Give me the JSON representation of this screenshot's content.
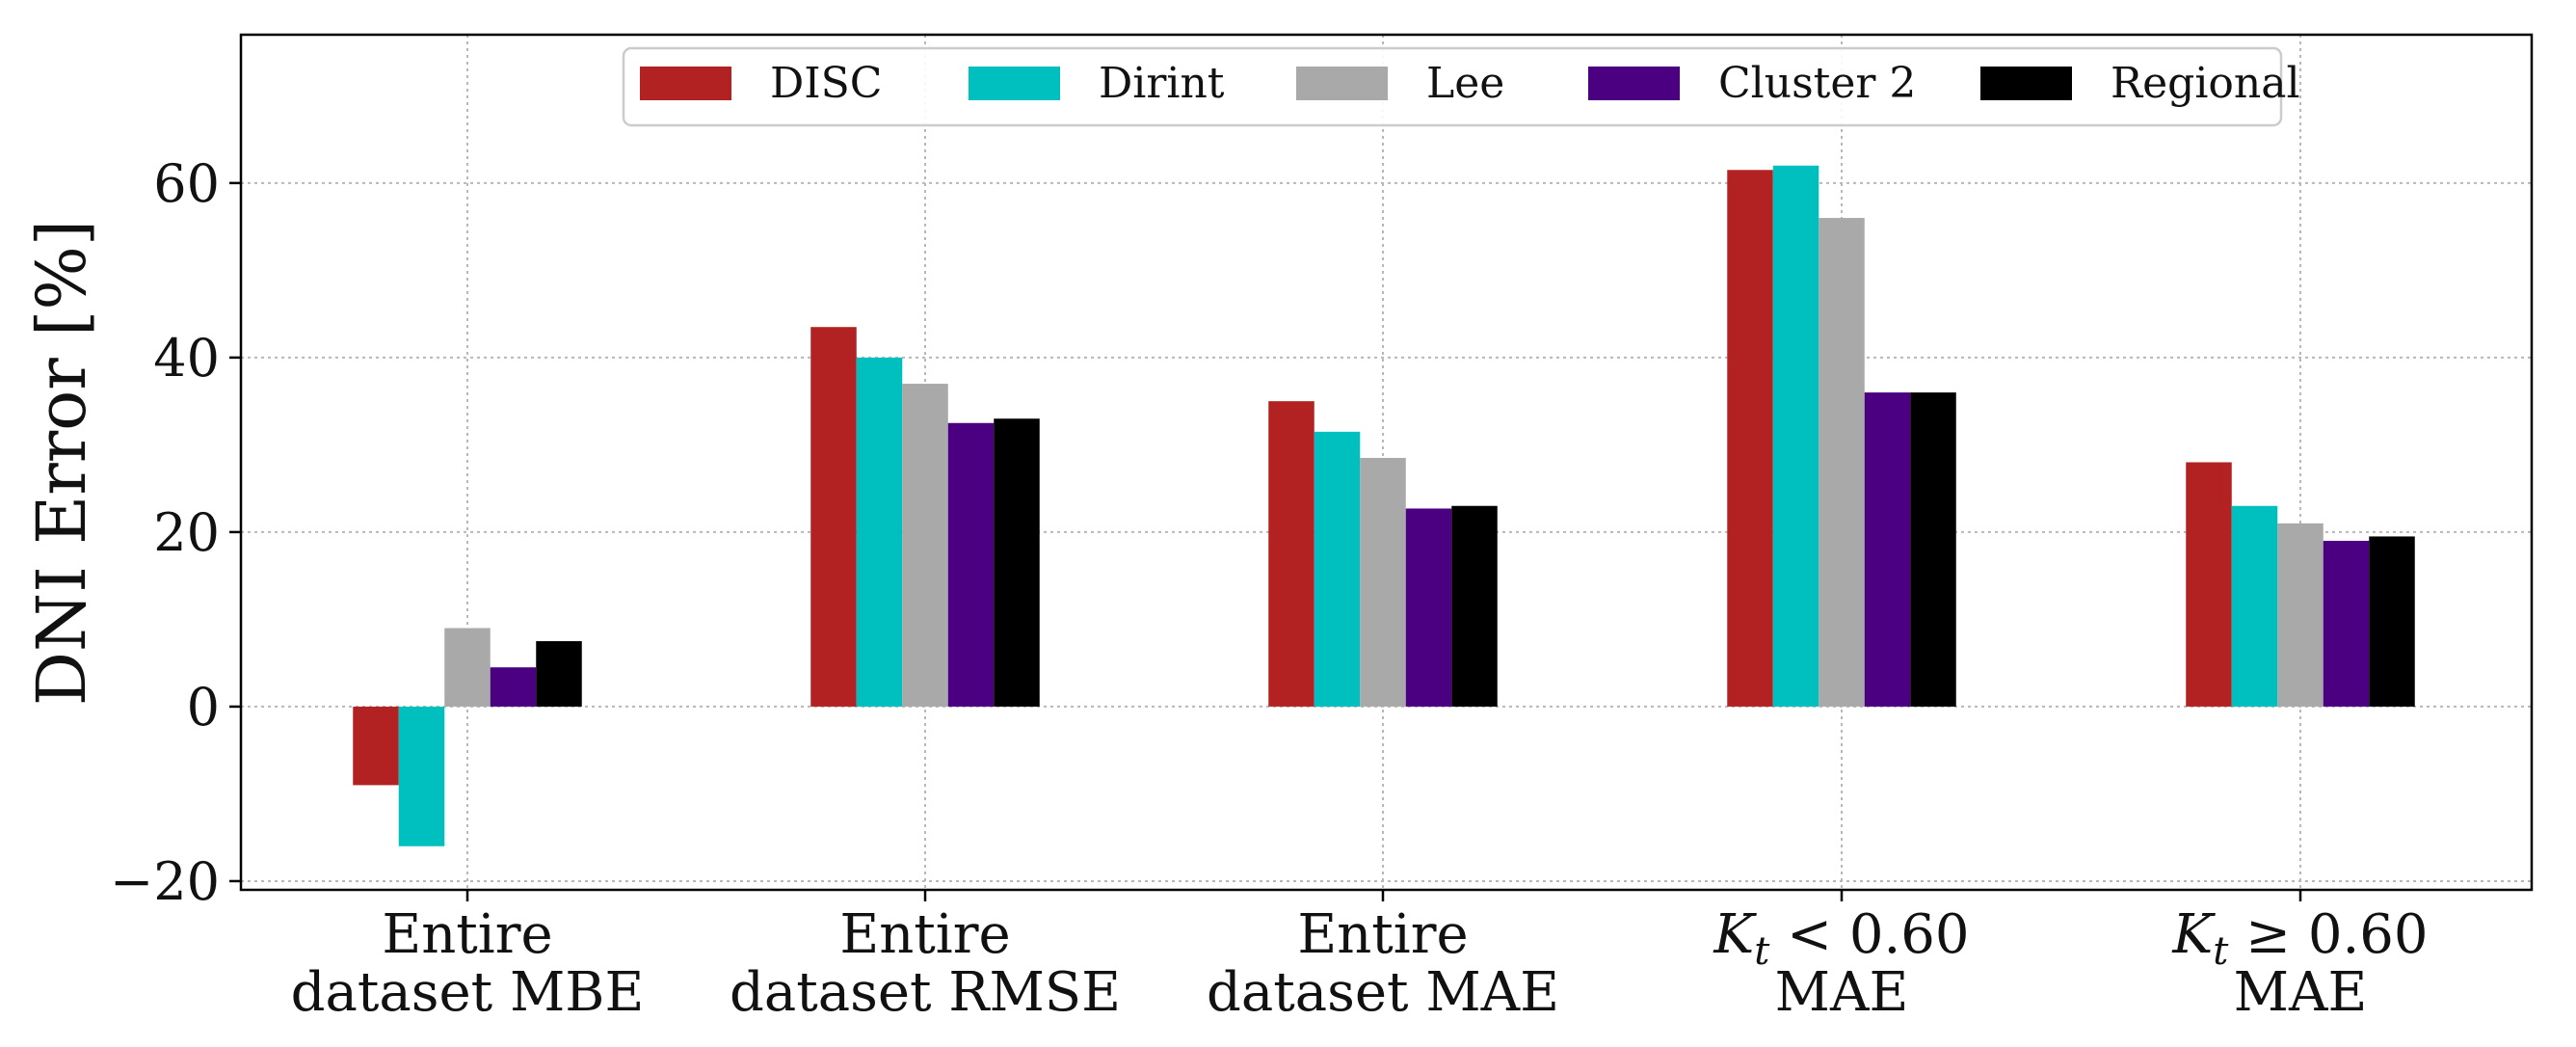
{
  "chart_data": {
    "type": "bar",
    "ylabel": "DNI Error [%]",
    "ylim": [
      -21,
      77
    ],
    "yticks": [
      -20,
      0,
      20,
      40,
      60
    ],
    "ytick_labels": [
      "−20",
      "0",
      "20",
      "40",
      "60"
    ],
    "grid": true,
    "legend_placement": "top-center",
    "categories": [
      {
        "line1": "Entire",
        "line2": "dataset MBE"
      },
      {
        "line1": "Entire",
        "line2": "dataset RMSE"
      },
      {
        "line1": "Entire",
        "line2": "dataset MAE"
      },
      {
        "line1": "K_t < 0.60",
        "line2": "MAE"
      },
      {
        "line1": "K_t ≥ 0.60",
        "line2": "MAE"
      }
    ],
    "series": [
      {
        "name": "DISC",
        "color": "#b22222",
        "values": [
          -9,
          43.5,
          35,
          61.5,
          28
        ]
      },
      {
        "name": "Dirint",
        "color": "#00bfbf",
        "values": [
          -16,
          40,
          31.5,
          62,
          23
        ]
      },
      {
        "name": "Lee",
        "color": "#a9a9a9",
        "values": [
          9,
          37,
          28.5,
          56,
          21
        ]
      },
      {
        "name": "Cluster 2",
        "color": "#4b0082",
        "values": [
          4.5,
          32.5,
          22.7,
          36,
          19
        ]
      },
      {
        "name": "Regional",
        "color": "#000000",
        "values": [
          7.5,
          33,
          23,
          36,
          19.5
        ]
      }
    ]
  }
}
